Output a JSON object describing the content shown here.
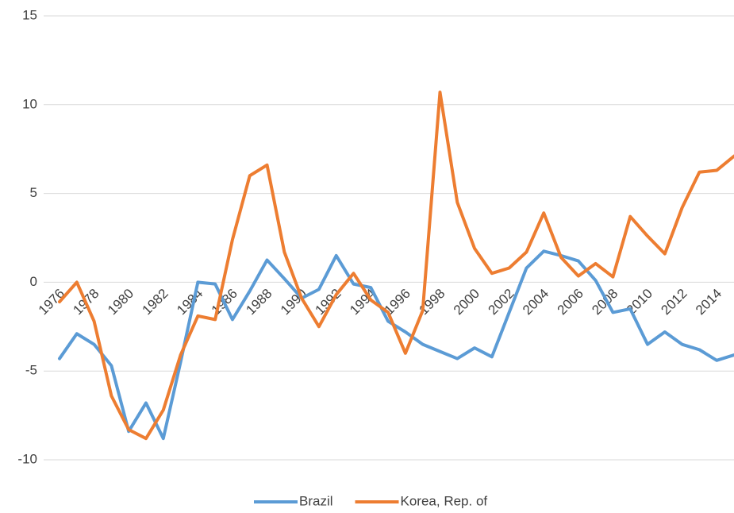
{
  "chart_data": {
    "type": "line",
    "categories": [
      "1976",
      null,
      "1978",
      null,
      "1980",
      null,
      "1982",
      null,
      "1984",
      null,
      "1986",
      null,
      "1988",
      null,
      "1990",
      null,
      "1992",
      null,
      "1994",
      null,
      "1996",
      null,
      "1998",
      null,
      "2000",
      null,
      "2002",
      null,
      "2004",
      null,
      "2006",
      null,
      "2008",
      null,
      "2010",
      null,
      "2012",
      null,
      "2014",
      null
    ],
    "series": [
      {
        "name": "Brazil",
        "color": "#5b9bd5",
        "values": [
          -4.3,
          -2.9,
          -3.5,
          -4.7,
          -8.4,
          -6.8,
          -8.8,
          -4.5,
          0.0,
          -0.1,
          -2.1,
          -0.5,
          1.25,
          0.2,
          -0.9,
          -0.4,
          1.5,
          -0.1,
          -0.3,
          -2.2,
          -2.8,
          -3.5,
          -3.9,
          -4.3,
          -3.7,
          -4.2,
          -1.7,
          0.8,
          1.75,
          1.5,
          1.2,
          0.1,
          -1.7,
          -1.5,
          -3.5,
          -2.8,
          -3.5,
          -3.8,
          -4.4,
          -4.1
        ]
      },
      {
        "name": "Korea, Rep. of",
        "color": "#ed7d31",
        "values": [
          -1.1,
          0.0,
          -2.2,
          -6.4,
          -8.3,
          -8.8,
          -7.2,
          -4.1,
          -1.9,
          -2.1,
          2.4,
          6.0,
          6.6,
          1.7,
          -0.9,
          -2.5,
          -0.7,
          0.5,
          -1.0,
          -1.7,
          -4.0,
          -1.6,
          10.7,
          4.5,
          1.9,
          0.5,
          0.8,
          1.7,
          3.9,
          1.4,
          0.35,
          1.05,
          0.3,
          3.7,
          2.6,
          1.6,
          4.2,
          6.2,
          6.3,
          7.1
        ]
      }
    ],
    "ylim": [
      -10,
      15
    ],
    "yticks": [
      -10,
      -5,
      0,
      5,
      10,
      15
    ],
    "grid": true,
    "legend": "bottom"
  }
}
